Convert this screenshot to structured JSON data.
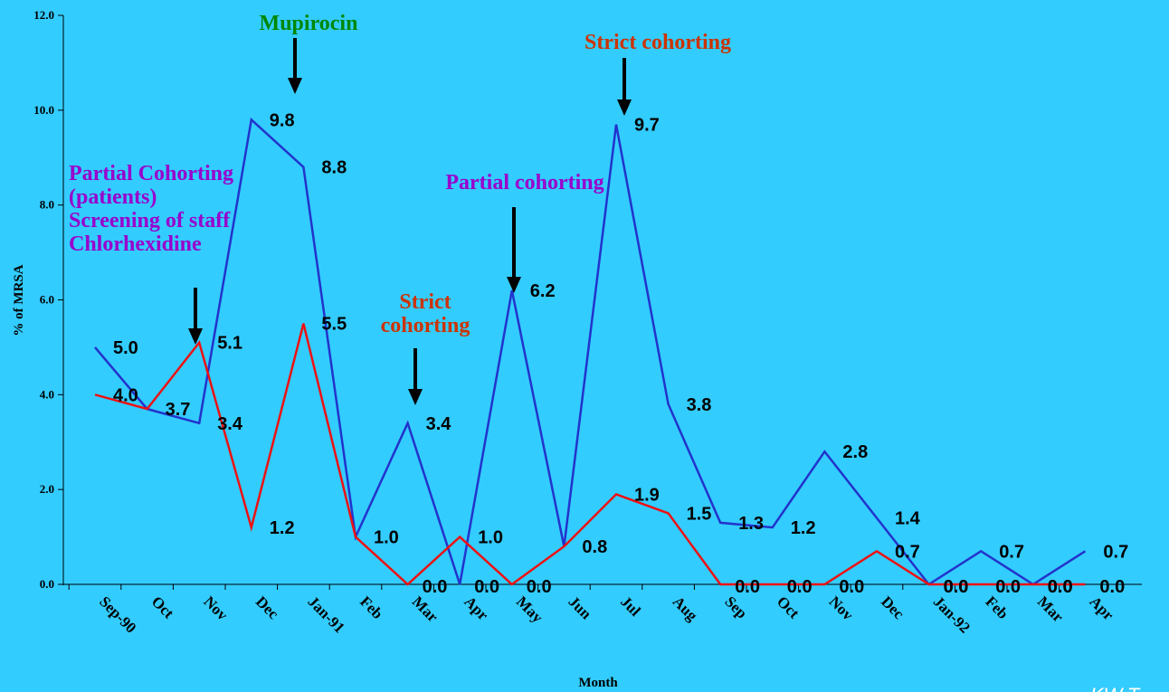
{
  "chart_data": {
    "type": "line",
    "xlabel": "Month",
    "ylabel": "% of MRSA",
    "ylim": [
      0,
      12
    ],
    "yticks": [
      "0.0",
      "2.0",
      "4.0",
      "6.0",
      "8.0",
      "10.0",
      "12.0"
    ],
    "categories": [
      "Sep-90",
      "Oct",
      "Nov",
      "Dec",
      "Jan-91",
      "Feb",
      "Mar",
      "Apr",
      "May",
      "Jun",
      "Jul",
      "Aug",
      "Sep",
      "Oct",
      "Nov",
      "Dec",
      "Jan-92",
      "Feb",
      "Mar",
      "Apr"
    ],
    "series": [
      {
        "color": "#2233cc",
        "values": [
          5.0,
          3.7,
          3.4,
          9.8,
          8.8,
          1.0,
          3.4,
          0.0,
          6.2,
          0.8,
          9.7,
          3.8,
          1.3,
          1.2,
          2.8,
          1.4,
          0.0,
          0.7,
          0.0,
          0.7
        ],
        "labels": [
          "5.0",
          "3.7",
          "3.4",
          "9.8",
          "8.8",
          "1.0",
          "3.4",
          "0.0",
          "6.2",
          "0.8",
          "9.7",
          "3.8",
          "1.3",
          "1.2",
          "2.8",
          "1.4",
          "0.0",
          "0.7",
          "0.0",
          "0.7"
        ]
      },
      {
        "color": "#ee1111",
        "values": [
          4.0,
          3.7,
          5.1,
          1.2,
          5.5,
          1.0,
          0.0,
          1.0,
          0.0,
          0.8,
          1.9,
          1.5,
          0.0,
          0.0,
          0.0,
          0.7,
          0.0,
          0.0,
          0.0,
          0.0
        ],
        "labels": [
          "4.0",
          "",
          "5.1",
          "1.2",
          "5.5",
          "",
          "0.0",
          "1.0",
          "0.0",
          "",
          "1.9",
          "1.5",
          "0.0",
          "0.0",
          "0.0",
          "0.7",
          "0.0",
          "0.0",
          "0.0",
          "0.0"
        ]
      }
    ],
    "annotations": [
      {
        "lines": [
          "Mupirocin"
        ],
        "color": "#008800"
      },
      {
        "lines": [
          "Strict cohorting"
        ],
        "color": "#cc3300"
      },
      {
        "lines": [
          "Partial Cohorting",
          "(patients)",
          "Screening of staff",
          "Chlorhexidine"
        ],
        "color": "#9900cc"
      },
      {
        "lines": [
          "Partial cohorting"
        ],
        "color": "#9900cc"
      },
      {
        "lines": [
          "Strict",
          "cohorting"
        ],
        "color": "#cc3300"
      }
    ],
    "credit": "KW.T."
  }
}
